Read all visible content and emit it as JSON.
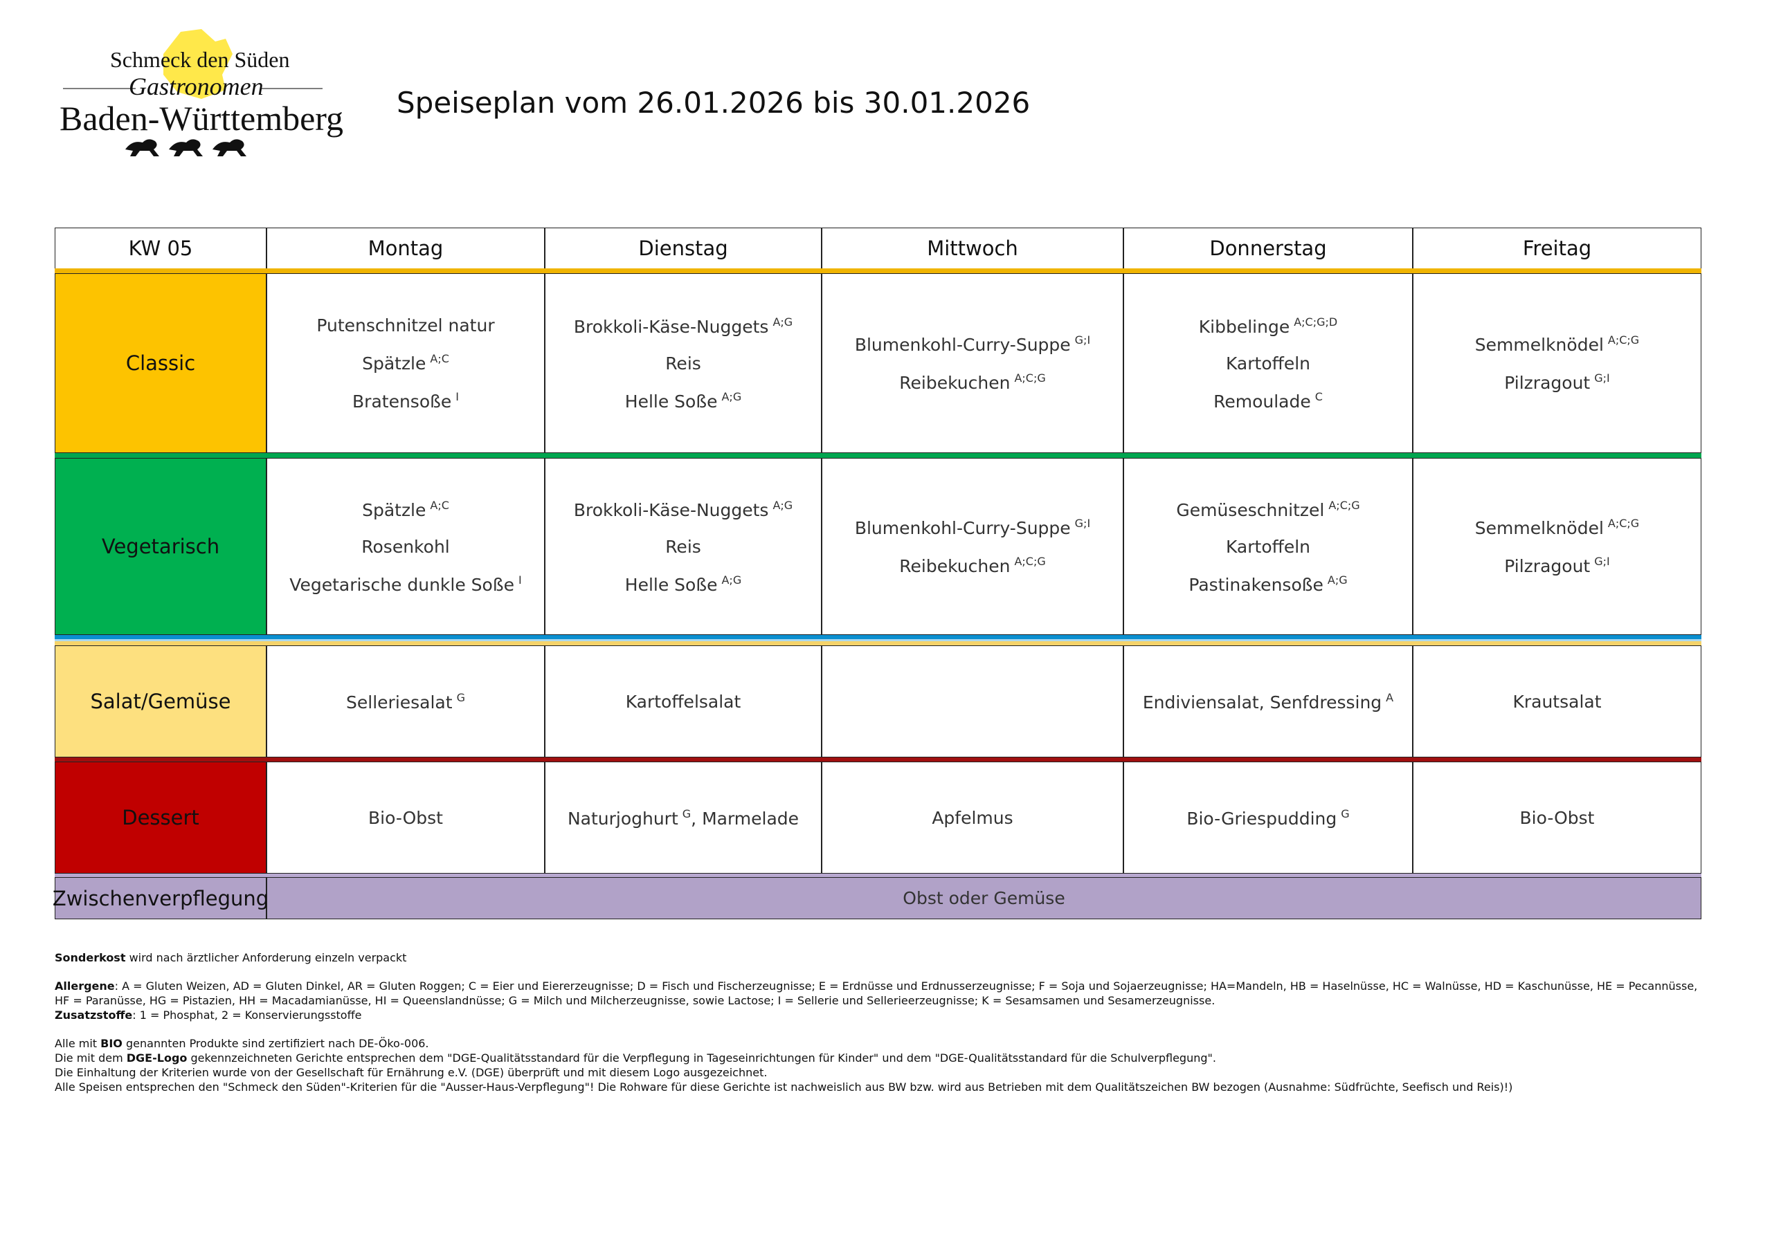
{
  "logo": {
    "line1": "Schmeck den Süden",
    "line2": "Gastronomen",
    "line3": "Baden-Württemberg"
  },
  "title": "Speiseplan vom 26.01.2026 bis 30.01.2026",
  "table": {
    "header": [
      "KW 05",
      "Montag",
      "Dienstag",
      "Mittwoch",
      "Donnerstag",
      "Freitag"
    ],
    "rows": [
      {
        "label": "Classic",
        "cells": [
          [
            {
              "text": "Putenschnitzel natur"
            },
            {
              "text": "Spätzle",
              "sup": "A;C"
            },
            {
              "text": "Bratensoße",
              "sup": "I"
            }
          ],
          [
            {
              "text": "Brokkoli-Käse-Nuggets",
              "sup": "A;G"
            },
            {
              "text": "Reis"
            },
            {
              "text": "Helle Soße",
              "sup": "A;G"
            }
          ],
          [
            {
              "text": "Blumenkohl-Curry-Suppe",
              "sup": "G;I"
            },
            {
              "text": "Reibekuchen",
              "sup": "A;C;G"
            }
          ],
          [
            {
              "text": "Kibbelinge",
              "sup": "A;C;G;D"
            },
            {
              "text": "Kartoffeln"
            },
            {
              "text": "Remoulade",
              "sup": "C"
            }
          ],
          [
            {
              "text": "Semmelknödel",
              "sup": "A;C;G"
            },
            {
              "text": "Pilzragout",
              "sup": "G;I"
            }
          ]
        ]
      },
      {
        "label": "Vegetarisch",
        "cells": [
          [
            {
              "text": "Spätzle",
              "sup": "A;C"
            },
            {
              "text": "Rosenkohl"
            },
            {
              "text": "Vegetarische dunkle Soße",
              "sup": "I"
            }
          ],
          [
            {
              "text": "Brokkoli-Käse-Nuggets",
              "sup": "A;G"
            },
            {
              "text": "Reis"
            },
            {
              "text": "Helle Soße",
              "sup": "A;G"
            }
          ],
          [
            {
              "text": "Blumenkohl-Curry-Suppe",
              "sup": "G;I"
            },
            {
              "text": "Reibekuchen",
              "sup": "A;C;G"
            }
          ],
          [
            {
              "text": "Gemüseschnitzel",
              "sup": "A;C;G"
            },
            {
              "text": "Kartoffeln"
            },
            {
              "text": "Pastinakensoße",
              "sup": "A;G"
            }
          ],
          [
            {
              "text": "Semmelknödel",
              "sup": "A;C;G"
            },
            {
              "text": "Pilzragout",
              "sup": "G;I"
            }
          ]
        ]
      },
      {
        "label": "Salat/Gemüse",
        "cells": [
          [
            {
              "text": "Selleriesalat",
              "sup": "G"
            }
          ],
          [
            {
              "text": "Kartoffelsalat"
            }
          ],
          [],
          [
            {
              "text": "Endiviensalat, Senfdressing",
              "sup": "A"
            }
          ],
          [
            {
              "text": "Krautsalat"
            }
          ]
        ]
      },
      {
        "label": "Dessert",
        "cells": [
          [
            {
              "text": "Bio-Obst"
            }
          ],
          [
            {
              "text": "Naturjoghurt",
              "sup": "G",
              "after": ", Marmelade"
            }
          ],
          [
            {
              "text": "Apfelmus"
            }
          ],
          [
            {
              "text": "Bio-Griespudding",
              "sup": "G"
            }
          ],
          [
            {
              "text": "Bio-Obst"
            }
          ]
        ]
      },
      {
        "label": "Zwischenverpflegung",
        "all_days": "Obst oder Gemüse"
      }
    ]
  },
  "footer": [
    [
      [
        {
          "text": "Sonderkost",
          "bold": true
        },
        {
          "text": " wird nach ärztlicher Anforderung einzeln verpackt"
        }
      ]
    ],
    [
      [
        {
          "text": "Allergene",
          "bold": true
        },
        {
          "text": ": A = Gluten Weizen, AD = Gluten Dinkel, AR = Gluten Roggen; C = Eier und Eiererzeugnisse; D = Fisch und Fischerzeugnisse; E = Erdnüsse und Erdnusserzeugnisse; F = Soja und Sojaerzeugnisse; HA=Mandeln, HB = Haselnüsse, HC = Walnüsse, HD = Kaschunüsse, HE = Pecannüsse,"
        }
      ],
      [
        {
          "text": "HF = Paranüsse, HG = Pistazien, HH = Macadamianüsse, HI = Queenslandnüsse; G = Milch und Milcherzeugnisse, sowie Lactose; I = Sellerie und Sellerieerzeugnisse; K = Sesamsamen und Sesamerzeugnisse."
        }
      ],
      [
        {
          "text": "Zusatzstoffe",
          "bold": true
        },
        {
          "text": ": 1 = Phosphat, 2 = Konservierungsstoffe"
        }
      ]
    ],
    [
      [
        {
          "text": "Alle mit "
        },
        {
          "text": "BIO",
          "bold": true
        },
        {
          "text": " genannten Produkte sind zertifiziert nach DE-Öko-006."
        }
      ],
      [
        {
          "text": "Die mit dem "
        },
        {
          "text": "DGE-Logo",
          "bold": true
        },
        {
          "text": " gekennzeichneten Gerichte entsprechen dem \"DGE-Qualitätsstandard für die Verpflegung in Tageseinrichtungen für Kinder\" und dem \"DGE-Qualitätsstandard für die Schulverpflegung\"."
        }
      ],
      [
        {
          "text": "Die Einhaltung der Kriterien wurde von der Gesellschaft für Ernährung e.V. (DGE) überprüft und mit diesem Logo ausgezeichnet."
        }
      ],
      [
        {
          "text": "Alle Speisen entsprechen den \"Schmeck den Süden\"-Kriterien für die \"Ausser-Haus-Verpflegung\"! Die Rohware für diese Gerichte ist nachweislich aus BW bzw. wird aus Betrieben mit dem Qualitätszeichen BW bezogen (Ausnahme: Südfrüchte, Seefisch und Reis)!)"
        }
      ]
    ]
  ]
}
